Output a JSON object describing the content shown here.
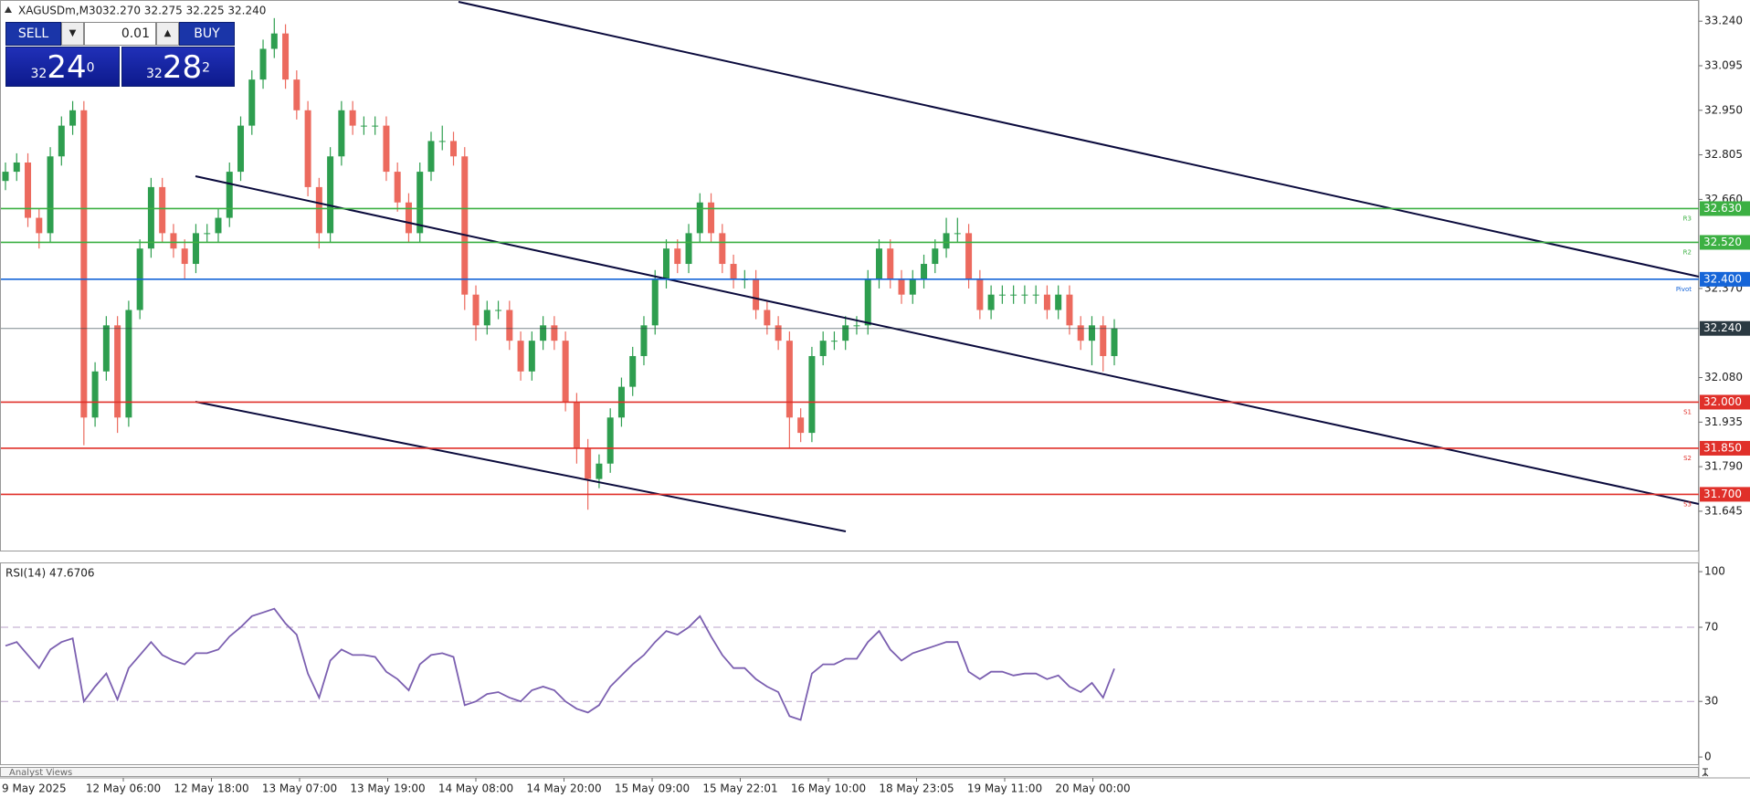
{
  "header": {
    "symbol": "XAGUSDm,M30",
    "quote": "32.270 32.275 32.225 32.240"
  },
  "trade_panel": {
    "sell": "SELL",
    "buy": "BUY",
    "volume": "0.01",
    "bid": {
      "big": "32",
      "main": "24",
      "small": "0"
    },
    "ask": {
      "big": "32",
      "main": "28",
      "small": "2"
    }
  },
  "chart_data": [
    {
      "type": "candlestick",
      "bull_color": "#2e9e4f",
      "bear_color": "#ec6a5e",
      "open": [
        32.72,
        32.75,
        32.78,
        32.6,
        32.55,
        32.8,
        32.9,
        32.95,
        31.95,
        32.1,
        32.25,
        31.95,
        32.3,
        32.5,
        32.7,
        32.55,
        32.5,
        32.45,
        32.55,
        32.55,
        32.6,
        32.75,
        32.9,
        33.05,
        33.15,
        33.2,
        33.05,
        32.95,
        32.7,
        32.55,
        32.8,
        32.95,
        32.9,
        32.9,
        32.9,
        32.75,
        32.65,
        32.55,
        32.75,
        32.85,
        32.85,
        32.8,
        32.35,
        32.25,
        32.3,
        32.3,
        32.2,
        32.1,
        32.2,
        32.25,
        32.2,
        32.0,
        31.85,
        31.75,
        31.8,
        31.95,
        32.05,
        32.15,
        32.25,
        32.4,
        32.5,
        32.45,
        32.55,
        32.65,
        32.55,
        32.45,
        32.4,
        32.4,
        32.3,
        32.25,
        32.2,
        31.95,
        31.9,
        32.15,
        32.2,
        32.2,
        32.25,
        32.25,
        32.4,
        32.5,
        32.4,
        32.35,
        32.4,
        32.45,
        32.5,
        32.55,
        32.55,
        32.4,
        32.3,
        32.35,
        32.35,
        32.35,
        32.35,
        32.35,
        32.3,
        32.35,
        32.25,
        32.2,
        32.25,
        32.15
      ],
      "high": [
        32.78,
        32.81,
        32.81,
        32.63,
        32.83,
        32.93,
        32.98,
        32.98,
        32.13,
        32.28,
        32.28,
        32.33,
        32.53,
        32.73,
        32.73,
        32.58,
        32.53,
        32.58,
        32.58,
        32.63,
        32.78,
        32.93,
        33.08,
        33.18,
        33.25,
        33.23,
        33.08,
        32.98,
        32.73,
        32.83,
        32.98,
        32.98,
        32.93,
        32.93,
        32.93,
        32.78,
        32.68,
        32.78,
        32.88,
        32.9,
        32.88,
        32.83,
        32.38,
        32.33,
        32.33,
        32.33,
        32.23,
        32.23,
        32.28,
        32.28,
        32.23,
        32.03,
        31.88,
        31.83,
        31.98,
        32.08,
        32.18,
        32.28,
        32.43,
        32.53,
        32.53,
        32.58,
        32.68,
        32.68,
        32.58,
        32.48,
        32.43,
        32.43,
        32.33,
        32.28,
        32.23,
        31.98,
        32.18,
        32.23,
        32.23,
        32.28,
        32.28,
        32.43,
        32.53,
        32.53,
        32.43,
        32.43,
        32.48,
        32.53,
        32.6,
        32.6,
        32.58,
        32.43,
        32.38,
        32.38,
        32.38,
        32.38,
        32.38,
        32.38,
        32.38,
        32.38,
        32.28,
        32.28,
        32.28,
        32.27
      ],
      "low": [
        32.69,
        32.72,
        32.57,
        32.5,
        32.52,
        32.77,
        32.87,
        31.86,
        31.92,
        32.07,
        31.9,
        31.92,
        32.27,
        32.47,
        32.52,
        32.47,
        32.4,
        32.42,
        32.52,
        32.52,
        32.57,
        32.72,
        32.87,
        33.02,
        33.12,
        33.02,
        32.92,
        32.67,
        32.5,
        32.52,
        32.77,
        32.87,
        32.87,
        32.87,
        32.72,
        32.62,
        32.52,
        32.52,
        32.72,
        32.82,
        32.77,
        32.3,
        32.2,
        32.22,
        32.27,
        32.17,
        32.07,
        32.07,
        32.17,
        32.17,
        31.97,
        31.8,
        31.65,
        31.72,
        31.77,
        31.92,
        32.02,
        32.12,
        32.22,
        32.37,
        32.42,
        32.42,
        32.52,
        32.52,
        32.42,
        32.37,
        32.37,
        32.27,
        32.22,
        32.17,
        31.85,
        31.87,
        31.87,
        32.12,
        32.17,
        32.17,
        32.22,
        32.22,
        32.37,
        32.37,
        32.32,
        32.32,
        32.37,
        32.42,
        32.47,
        32.52,
        32.37,
        32.27,
        32.27,
        32.32,
        32.32,
        32.32,
        32.32,
        32.27,
        32.27,
        32.22,
        32.17,
        32.12,
        32.1,
        32.12
      ],
      "close": [
        32.75,
        32.78,
        32.6,
        32.55,
        32.8,
        32.9,
        32.95,
        31.95,
        32.1,
        32.25,
        31.95,
        32.3,
        32.5,
        32.7,
        32.55,
        32.5,
        32.45,
        32.55,
        32.55,
        32.6,
        32.75,
        32.9,
        33.05,
        33.15,
        33.2,
        33.05,
        32.95,
        32.7,
        32.55,
        32.8,
        32.95,
        32.9,
        32.9,
        32.9,
        32.75,
        32.65,
        32.55,
        32.75,
        32.85,
        32.85,
        32.8,
        32.35,
        32.25,
        32.3,
        32.3,
        32.2,
        32.1,
        32.2,
        32.25,
        32.2,
        32.0,
        31.85,
        31.75,
        31.8,
        31.95,
        32.05,
        32.15,
        32.25,
        32.4,
        32.5,
        32.45,
        32.55,
        32.65,
        32.55,
        32.45,
        32.4,
        32.4,
        32.3,
        32.25,
        32.2,
        31.95,
        31.9,
        32.15,
        32.2,
        32.2,
        32.25,
        32.25,
        32.4,
        32.5,
        32.4,
        32.35,
        32.4,
        32.45,
        32.5,
        32.55,
        32.55,
        32.4,
        32.3,
        32.35,
        32.35,
        32.35,
        32.35,
        32.35,
        32.3,
        32.35,
        32.25,
        32.2,
        32.25,
        32.15,
        32.24
      ],
      "ylim": [
        31.514,
        33.303
      ],
      "yticks": [
        {
          "value": 33.24,
          "label": "33.240"
        },
        {
          "value": 33.095,
          "label": "33.095"
        },
        {
          "value": 32.95,
          "label": "32.950"
        },
        {
          "value": 32.805,
          "label": "32.805"
        },
        {
          "value": 32.66,
          "label": "32.660"
        },
        {
          "value": 32.37,
          "label": "32.370"
        },
        {
          "value": 32.08,
          "label": "32.080"
        },
        {
          "value": 31.935,
          "label": "31.935"
        },
        {
          "value": 31.79,
          "label": "31.790"
        },
        {
          "value": 31.645,
          "label": "31.645"
        }
      ],
      "levels": [
        {
          "value": 32.63,
          "label": "32.630",
          "name": "R3",
          "color": "#3cb043"
        },
        {
          "value": 32.52,
          "label": "32.520",
          "name": "R2",
          "color": "#3cb043"
        },
        {
          "value": 32.4,
          "label": "32.400",
          "name": "Pivot",
          "color": "#1565d8"
        },
        {
          "value": 32.24,
          "label": "32.240",
          "color": "#2b3a42"
        },
        {
          "value": 32.0,
          "label": "32.000",
          "name": "S1",
          "color": "#e0302a"
        },
        {
          "value": 31.85,
          "label": "31.850",
          "name": "S2",
          "color": "#e0302a"
        },
        {
          "value": 31.7,
          "label": "31.700",
          "name": "S3",
          "color": "#e0302a"
        }
      ]
    },
    {
      "type": "line",
      "title": "RSI(14) 47.6706",
      "color": "#7b5fb0",
      "values": [
        60,
        62,
        55,
        48,
        58,
        62,
        64,
        30,
        38,
        45,
        31,
        48,
        55,
        62,
        55,
        52,
        50,
        56,
        56,
        58,
        65,
        70,
        76,
        78,
        80,
        72,
        66,
        45,
        32,
        52,
        58,
        55,
        55,
        54,
        46,
        42,
        36,
        50,
        55,
        56,
        54,
        28,
        30,
        34,
        35,
        32,
        30,
        36,
        38,
        36,
        30,
        26,
        24,
        28,
        38,
        44,
        50,
        55,
        62,
        68,
        66,
        70,
        76,
        65,
        55,
        48,
        48,
        42,
        38,
        35,
        22,
        20,
        45,
        50,
        50,
        53,
        53,
        62,
        68,
        58,
        52,
        56,
        58,
        60,
        62,
        62,
        46,
        42,
        46,
        46,
        44,
        45,
        45,
        42,
        44,
        38,
        35,
        40,
        32,
        47.6706
      ],
      "ylim": [
        -3.4,
        103
      ],
      "yticks": [
        100,
        70,
        30,
        0
      ],
      "levels": [
        70,
        30
      ]
    }
  ],
  "analyst_tab": "Analyst Views",
  "time_axis": [
    "9 May 2025",
    "12 May 06:00",
    "12 May 18:00",
    "13 May 07:00",
    "13 May 19:00",
    "14 May 08:00",
    "14 May 20:00",
    "15 May 09:00",
    "15 May 22:01",
    "16 May 10:00",
    "18 May 23:05",
    "19 May 11:00",
    "20 May 00:00"
  ]
}
